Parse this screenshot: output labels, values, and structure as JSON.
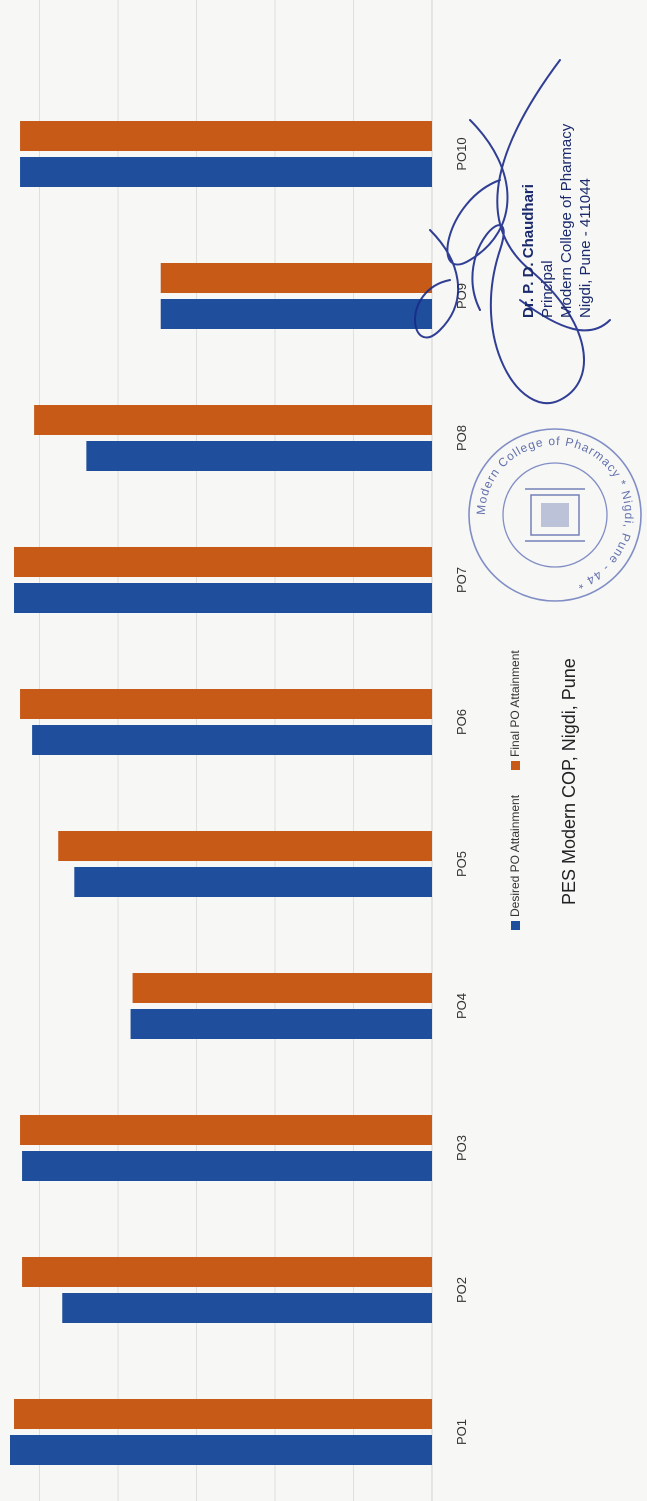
{
  "chart_data": {
    "type": "bar",
    "orientation": "horizontal",
    "categories": [
      "PO1",
      "PO2",
      "PO3",
      "PO4",
      "PO5",
      "PO6",
      "PO7",
      "PO8",
      "PO9",
      "PO10"
    ],
    "series": [
      {
        "name": "Desired PO Attainment",
        "values": [
          2.1,
          1.84,
          2.04,
          1.5,
          1.78,
          1.99,
          2.08,
          1.72,
          1.35,
          2.05
        ]
      },
      {
        "name": "Final PO Attainment",
        "values": [
          2.08,
          2.04,
          2.05,
          1.49,
          1.86,
          2.05,
          2.08,
          1.98,
          1.35,
          2.05
        ]
      }
    ],
    "xlim": [
      0,
      2.1
    ],
    "grid": true,
    "legend_position": "bottom",
    "colors": {
      "desired": "#1f4e9c",
      "final": "#c85a18",
      "grid": "#d9d9d9"
    }
  },
  "caption": "PES Modern COP, Nigdi, Pune",
  "signature": {
    "name": "Dr. P. D. Chaudhari",
    "title": "Principal",
    "college": "Modern College of Pharmacy",
    "address": "Nigdi, Pune - 411044"
  },
  "seal": {
    "text": "Modern College of Pharmacy * Nigdi, Pune - 44 *"
  }
}
